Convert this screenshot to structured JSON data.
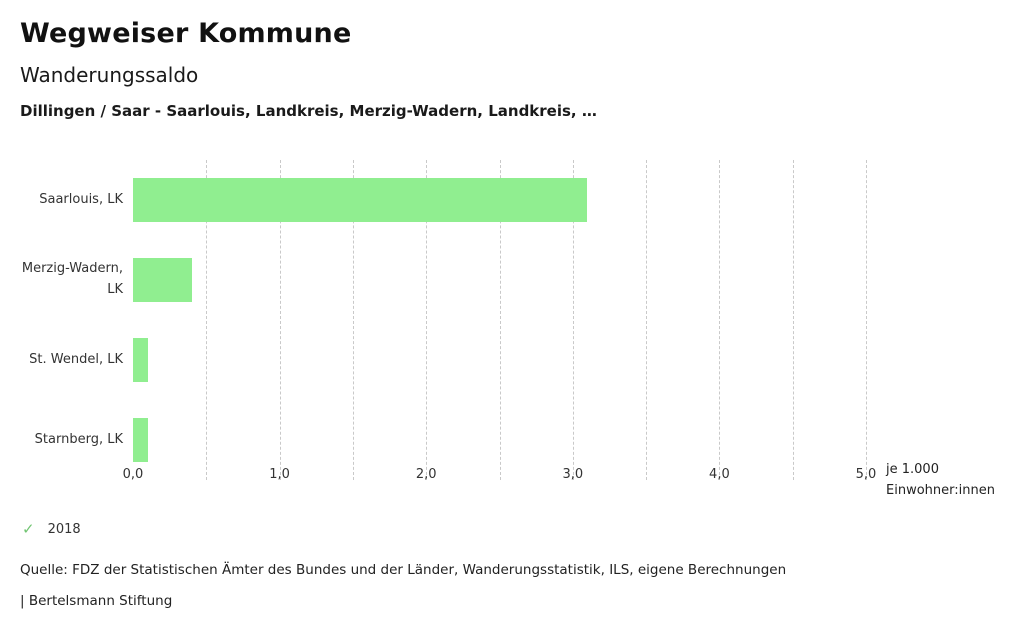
{
  "header": {
    "title": "Wegweiser Kommune",
    "subtitle": "Wanderungssaldo",
    "description": "Dillingen / Saar - Saarlouis, Landkreis, Merzig-Wadern, Landkreis, …"
  },
  "chart_data": {
    "type": "bar",
    "orientation": "horizontal",
    "categories": [
      "Saarlouis, LK",
      "Merzig-Wadern, LK",
      "St. Wendel, LK",
      "Starnberg, LK"
    ],
    "values": [
      3.1,
      0.4,
      0.1,
      0.1
    ],
    "xlim": [
      0,
      5
    ],
    "x_ticks": [
      "0,0",
      "1,0",
      "2,0",
      "3,0",
      "4,0",
      "5,0"
    ],
    "gridline_step": 0.5,
    "grid": true,
    "bar_color": "#90ee90",
    "unit_label_line1": "je 1.000",
    "unit_label_line2": "Einwohner:innen"
  },
  "legend": {
    "check_icon": "✓",
    "year": "2018",
    "check_color": "#72c573"
  },
  "footer": {
    "source": "Quelle: FDZ der Statistischen Ämter des Bundes und der Länder, Wanderungsstatistik, ILS, eigene Berechnungen",
    "brand": "| Bertelsmann Stiftung"
  }
}
